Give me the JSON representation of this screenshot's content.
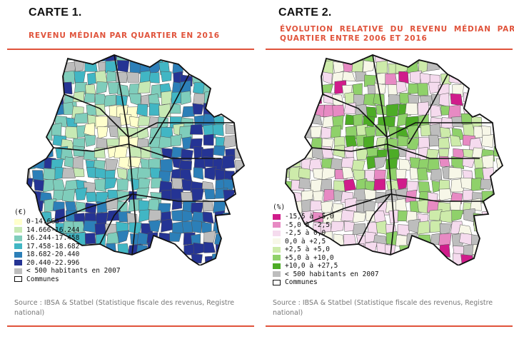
{
  "map1": {
    "title": "CARTE 1.",
    "subtitle": "REVENU MÉDIAN PAR QUARTIER EN 2016",
    "legend_title": "(€)",
    "legend": [
      {
        "label": "0-14.666",
        "color": "#ffffcc"
      },
      {
        "label": "14.666-16.244",
        "color": "#c7e9b4"
      },
      {
        "label": "16.244-17.458",
        "color": "#7fcdbb"
      },
      {
        "label": "17.458-18.682",
        "color": "#41b6c4"
      },
      {
        "label": "18.682-20.440",
        "color": "#2c7fb8"
      },
      {
        "label": "20.440-22.996",
        "color": "#253494"
      },
      {
        "label": "< 500 habitants en 2007",
        "color": "#bdbdbd"
      },
      {
        "label": "Communes",
        "color": "outline"
      }
    ],
    "source": "Source : IBSA & Statbel (Statistique fiscale des revenus, Registre national)"
  },
  "map2": {
    "title": "CARTE 2.",
    "subtitle": "ÉVOLUTION RELATIVE DU REVENU MÉDIAN PAR QUARTIER ENTRE 2006 ET 2016",
    "legend_title": "(%)",
    "legend": [
      {
        "label": "-15,5 à -5,0",
        "color": "#d01c8b"
      },
      {
        "label": "-5,0 à -2,5",
        "color": "#e78ac3"
      },
      {
        "label": "-2,5 à 0,0",
        "color": "#f5dbee"
      },
      {
        "label": "0,0 à +2,5",
        "color": "#f7f7e8"
      },
      {
        "label": "+2,5 à +5,0",
        "color": "#cdebaa"
      },
      {
        "label": "+5,0 à +10,0",
        "color": "#8fd16a"
      },
      {
        "label": "+10,0 à +27,5",
        "color": "#4dac26"
      },
      {
        "label": "< 500 habitants en 2007",
        "color": "#bdbdbd"
      },
      {
        "label": "Communes",
        "color": "outline"
      }
    ],
    "source": "Source : IBSA & Statbel (Statistique fiscale des revenus, Registre national)"
  }
}
